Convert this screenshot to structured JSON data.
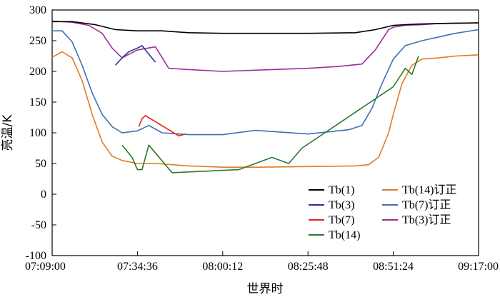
{
  "chart_data": {
    "type": "line",
    "xlabel": "世界时",
    "ylabel": "亮温/K",
    "x_ticks": [
      "07:09:00",
      "07:34:36",
      "08:00:12",
      "08:25:48",
      "08:51:24",
      "09:17:00"
    ],
    "xlim": [
      "07:09:00",
      "09:17:00"
    ],
    "ylim": [
      -100,
      300
    ],
    "y_ticks": [
      -100,
      -50,
      0,
      50,
      100,
      150,
      200,
      250,
      300
    ],
    "legend_position": "bottom-right",
    "series": [
      {
        "name": "Tb(1)",
        "color": "#000000",
        "x": [
          "07:09:00",
          "07:15:00",
          "07:22:00",
          "07:28:00",
          "07:34:36",
          "07:42:00",
          "07:50:00",
          "08:00:12",
          "08:15:00",
          "08:25:48",
          "08:40:00",
          "08:46:00",
          "08:51:24",
          "08:58:00",
          "09:05:00",
          "09:17:00"
        ],
        "y": [
          281,
          281,
          276,
          268,
          266,
          266,
          263,
          262,
          262,
          262,
          263,
          268,
          275,
          277,
          278,
          279
        ]
      },
      {
        "name": "Tb(3)",
        "color": "#2e2e8c",
        "x": [
          "07:28:00",
          "07:30:00",
          "07:32:00",
          "07:34:36",
          "07:36:00",
          "07:38:00",
          "07:40:00"
        ],
        "y": [
          210,
          222,
          232,
          238,
          242,
          228,
          215
        ]
      },
      {
        "name": "Tb(7)",
        "color": "#e8201a",
        "x": [
          "07:35:00",
          "07:36:00",
          "07:37:00",
          "07:47:00",
          "07:49:00"
        ],
        "y": [
          110,
          123,
          128,
          95,
          98
        ]
      },
      {
        "name": "Tb(14)",
        "color": "#2a7a2a",
        "x": [
          "07:30:00",
          "07:33:00",
          "07:34:36",
          "07:36:00",
          "07:38:00",
          "07:45:00",
          "08:05:00",
          "08:15:00",
          "08:20:00",
          "08:24:00",
          "08:51:24",
          "08:55:00",
          "08:57:00",
          "08:59:00"
        ],
        "y": [
          80,
          60,
          40,
          40,
          80,
          35,
          40,
          60,
          50,
          75,
          175,
          205,
          195,
          225
        ]
      },
      {
        "name": "Tb(14)订正",
        "color": "#e07b28",
        "x": [
          "07:09:00",
          "07:12:00",
          "07:15:00",
          "07:18:00",
          "07:21:00",
          "07:24:00",
          "07:27:00",
          "07:30:00",
          "07:34:36",
          "07:40:00",
          "07:50:00",
          "08:00:12",
          "08:10:00",
          "08:25:48",
          "08:40:00",
          "08:44:00",
          "08:47:00",
          "08:50:00",
          "08:51:24",
          "08:54:00",
          "08:57:00",
          "09:00:00",
          "09:05:00",
          "09:10:00",
          "09:17:00"
        ],
        "y": [
          223,
          232,
          222,
          185,
          130,
          85,
          62,
          55,
          50,
          50,
          46,
          44,
          44,
          45,
          46,
          48,
          60,
          100,
          130,
          180,
          210,
          220,
          222,
          225,
          227
        ]
      },
      {
        "name": "Tb(7)订正",
        "color": "#3d6fb6",
        "x": [
          "07:09:00",
          "07:12:00",
          "07:15:00",
          "07:18:00",
          "07:21:00",
          "07:24:00",
          "07:27:00",
          "07:30:00",
          "07:34:36",
          "07:38:00",
          "07:42:00",
          "07:50:00",
          "08:00:12",
          "08:10:00",
          "08:25:48",
          "08:38:00",
          "08:42:00",
          "08:45:00",
          "08:48:00",
          "08:51:24",
          "08:55:00",
          "09:00:00",
          "09:05:00",
          "09:10:00",
          "09:17:00"
        ],
        "y": [
          266,
          266,
          248,
          210,
          165,
          130,
          110,
          100,
          103,
          112,
          100,
          97,
          97,
          104,
          98,
          105,
          112,
          140,
          180,
          220,
          242,
          250,
          256,
          262,
          268
        ]
      },
      {
        "name": "Tb(3)订正",
        "color": "#9b2f9b",
        "x": [
          "07:09:00",
          "07:15:00",
          "07:20:00",
          "07:24:00",
          "07:27:00",
          "07:30:00",
          "07:34:36",
          "07:40:00",
          "07:44:00",
          "07:50:00",
          "08:00:12",
          "08:10:00",
          "08:25:48",
          "08:35:00",
          "08:42:00",
          "08:46:00",
          "08:50:00",
          "08:51:24",
          "08:55:00",
          "09:00:00",
          "09:05:00",
          "09:17:00"
        ],
        "y": [
          282,
          280,
          275,
          262,
          238,
          222,
          235,
          240,
          205,
          203,
          200,
          202,
          205,
          208,
          212,
          235,
          268,
          272,
          275,
          276,
          278,
          279
        ]
      }
    ]
  }
}
